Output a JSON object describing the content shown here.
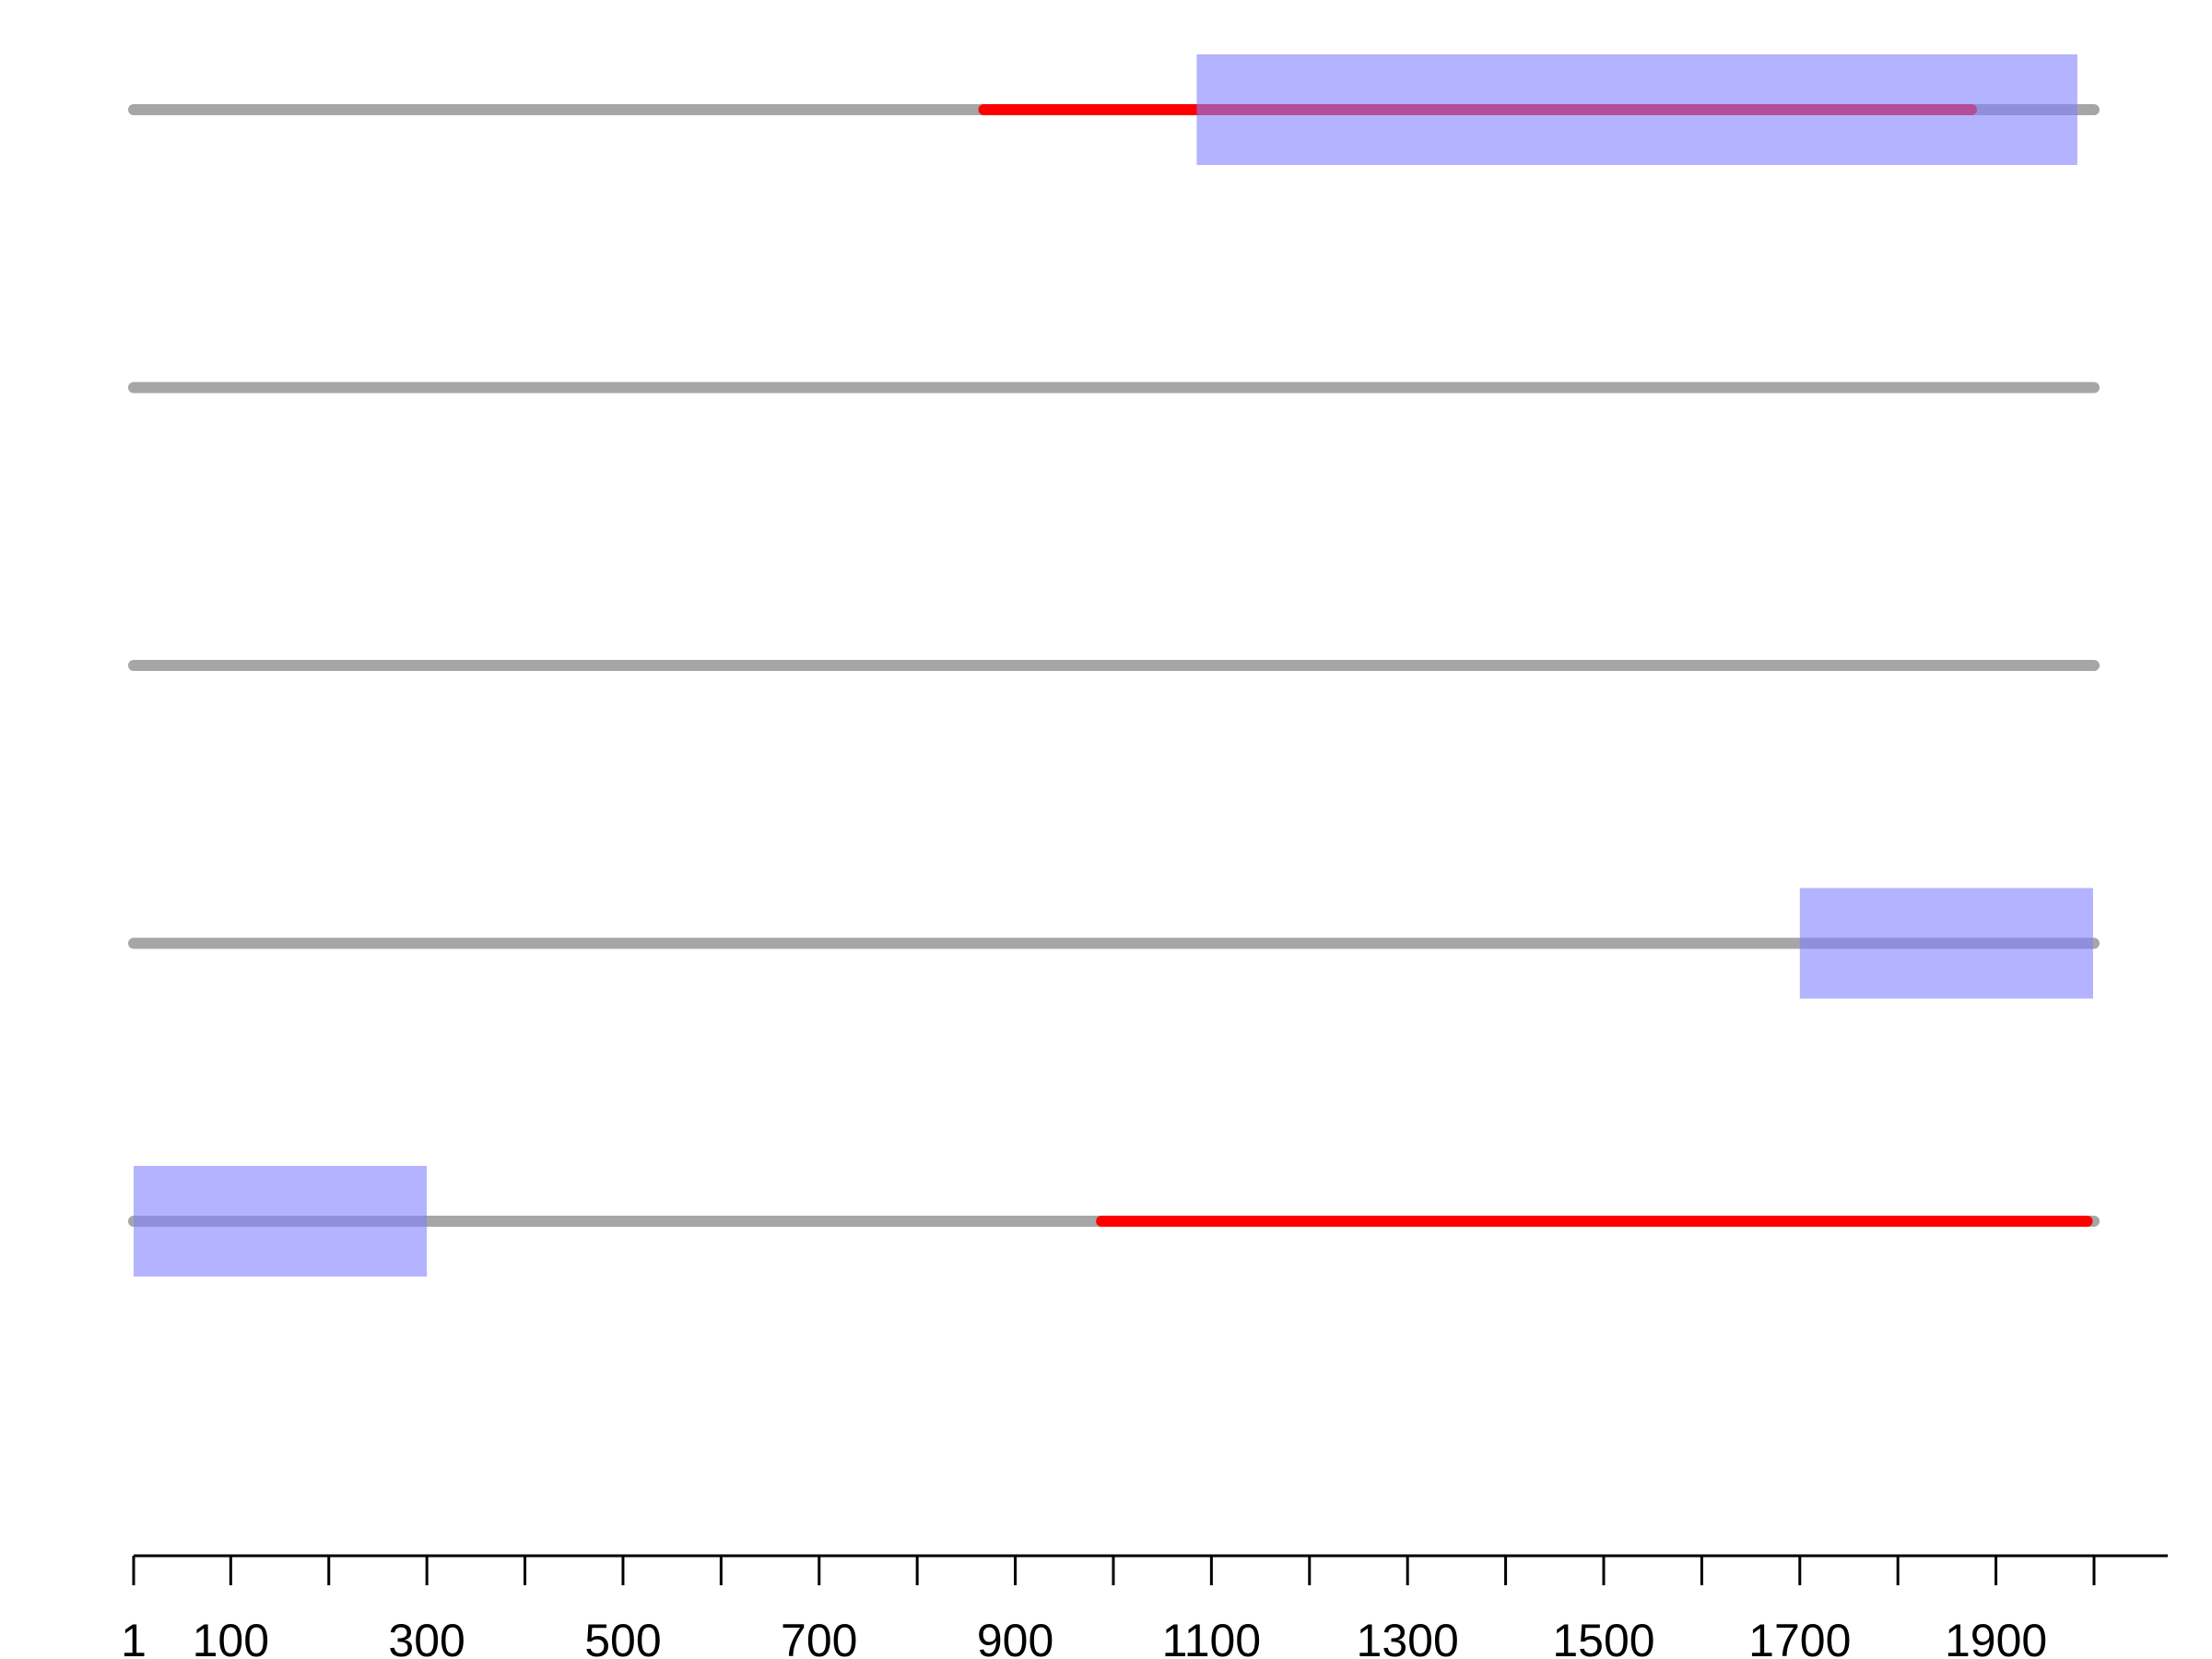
{
  "chart_data": {
    "type": "track",
    "title": "",
    "xlabel": "",
    "ylabel": "",
    "xlim": [
      1,
      2000
    ],
    "grid": false,
    "legend": "none",
    "colors": {
      "track": "#a6a6a6",
      "region": "#ff0000",
      "box": "#8080ff",
      "box_opacity": 0.6,
      "axis": "#000000"
    },
    "x_ticks": [
      1,
      100,
      200,
      300,
      400,
      500,
      600,
      700,
      800,
      900,
      1000,
      1100,
      1200,
      1300,
      1400,
      1500,
      1600,
      1700,
      1800,
      1900,
      2000
    ],
    "x_tick_labels": [
      {
        "value": 1,
        "label": "1"
      },
      {
        "value": 100,
        "label": "100"
      },
      {
        "value": 300,
        "label": "300"
      },
      {
        "value": 500,
        "label": "500"
      },
      {
        "value": 700,
        "label": "700"
      },
      {
        "value": 900,
        "label": "900"
      },
      {
        "value": 1100,
        "label": "1100"
      },
      {
        "value": 1300,
        "label": "1300"
      },
      {
        "value": 1500,
        "label": "1500"
      },
      {
        "value": 1700,
        "label": "1700"
      },
      {
        "value": 1900,
        "label": "1900"
      }
    ],
    "tracks": [
      {
        "start": 1,
        "end": 2000,
        "segments": [
          {
            "start": 868,
            "end": 1875
          }
        ],
        "boxes": [
          {
            "start": 1085,
            "end": 1983
          }
        ]
      },
      {
        "start": 1,
        "end": 2000,
        "segments": [],
        "boxes": []
      },
      {
        "start": 1,
        "end": 2000,
        "segments": [],
        "boxes": []
      },
      {
        "start": 1,
        "end": 2000,
        "segments": [],
        "boxes": [
          {
            "start": 1700,
            "end": 1999
          }
        ]
      },
      {
        "start": 1,
        "end": 2000,
        "segments": [
          {
            "start": 988,
            "end": 1993
          }
        ],
        "boxes": [
          {
            "start": 1,
            "end": 300
          }
        ]
      }
    ]
  }
}
